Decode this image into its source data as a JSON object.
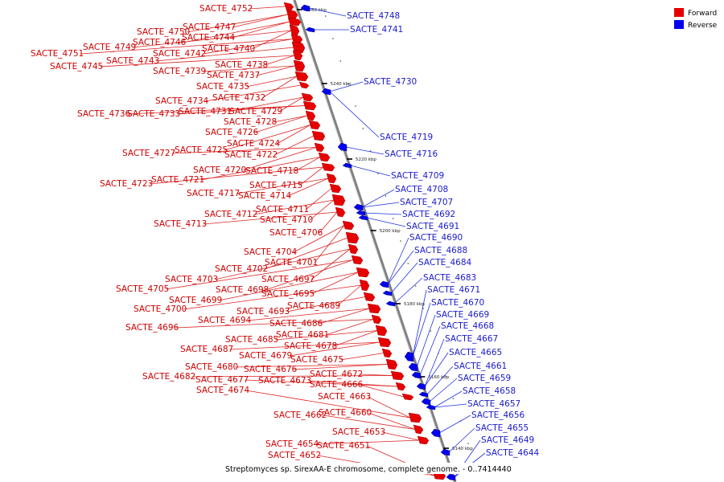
{
  "legend": {
    "forward_label": "Forward",
    "reverse_label": "Reverse",
    "forward_color": "#e60000",
    "reverse_color": "#0000ee"
  },
  "caption": "Streptomyces sp. SirexAA-E chromosome, complete genome. - 0..7414440",
  "axis": {
    "ticks": [
      {
        "label": "5260 kbp",
        "pos": 5260
      },
      {
        "label": "5240 kbp",
        "pos": 5240
      },
      {
        "label": "5220 kbp",
        "pos": 5220
      },
      {
        "label": "5200 kbp",
        "pos": 5200
      },
      {
        "label": "5180 kbp",
        "pos": 5180
      },
      {
        "label": "5160 kbp",
        "pos": 5160
      },
      {
        "label": "5140 kbp",
        "pos": 5140
      }
    ]
  },
  "genes_forward": [
    "SACTE_4752",
    "SACTE_4747",
    "SACTE_4750",
    "SACTE_4744",
    "SACTE_4746",
    "SACTE_4749",
    "SACTE_4740",
    "SACTE_4742",
    "SACTE_4751",
    "SACTE_4743",
    "SACTE_4745",
    "SACTE_4738",
    "SACTE_4739",
    "SACTE_4737",
    "SACTE_4735",
    "SACTE_4732",
    "SACTE_4734",
    "SACTE_4731",
    "SACTE_4729",
    "SACTE_4736",
    "SACTE_4733",
    "SACTE_4728",
    "SACTE_4726",
    "SACTE_4724",
    "SACTE_4725",
    "SACTE_4722",
    "SACTE_4727",
    "SACTE_4720",
    "SACTE_4718",
    "SACTE_4721",
    "SACTE_4715",
    "SACTE_4723",
    "SACTE_4717",
    "SACTE_4714",
    "SACTE_4711",
    "SACTE_4712",
    "SACTE_4710",
    "SACTE_4713",
    "SACTE_4706",
    "SACTE_4704",
    "SACTE_4701",
    "SACTE_4702",
    "SACTE_4703",
    "SACTE_4697",
    "SACTE_4698",
    "SACTE_4705",
    "SACTE_4695",
    "SACTE_4699",
    "SACTE_4689",
    "SACTE_4700",
    "SACTE_4693",
    "SACTE_4694",
    "SACTE_4686",
    "SACTE_4696",
    "SACTE_4681",
    "SACTE_4685",
    "SACTE_4678",
    "SACTE_4687",
    "SACTE_4679",
    "SACTE_4675",
    "SACTE_4680",
    "SACTE_4676",
    "SACTE_4672",
    "SACTE_4682",
    "SACTE_4677",
    "SACTE_4673",
    "SACTE_4666",
    "SACTE_4674",
    "SACTE_4663",
    "SACTE_4660",
    "SACTE_4662",
    "SACTE_4653",
    "SACTE_4654",
    "SACTE_4651",
    "SACTE_4652"
  ],
  "genes_reverse": [
    "SACTE_4748",
    "SACTE_4741",
    "SACTE_4730",
    "SACTE_4719",
    "SACTE_4716",
    "SACTE_4709",
    "SACTE_4708",
    "SACTE_4707",
    "SACTE_4692",
    "SACTE_4691",
    "SACTE_4690",
    "SACTE_4688",
    "SACTE_4684",
    "SACTE_4683",
    "SACTE_4671",
    "SACTE_4670",
    "SACTE_4669",
    "SACTE_4668",
    "SACTE_4667",
    "SACTE_4665",
    "SACTE_4661",
    "SACTE_4659",
    "SACTE_4658",
    "SACTE_4657",
    "SACTE_4656",
    "SACTE_4655",
    "SACTE_4649",
    "SACTE_4644"
  ]
}
